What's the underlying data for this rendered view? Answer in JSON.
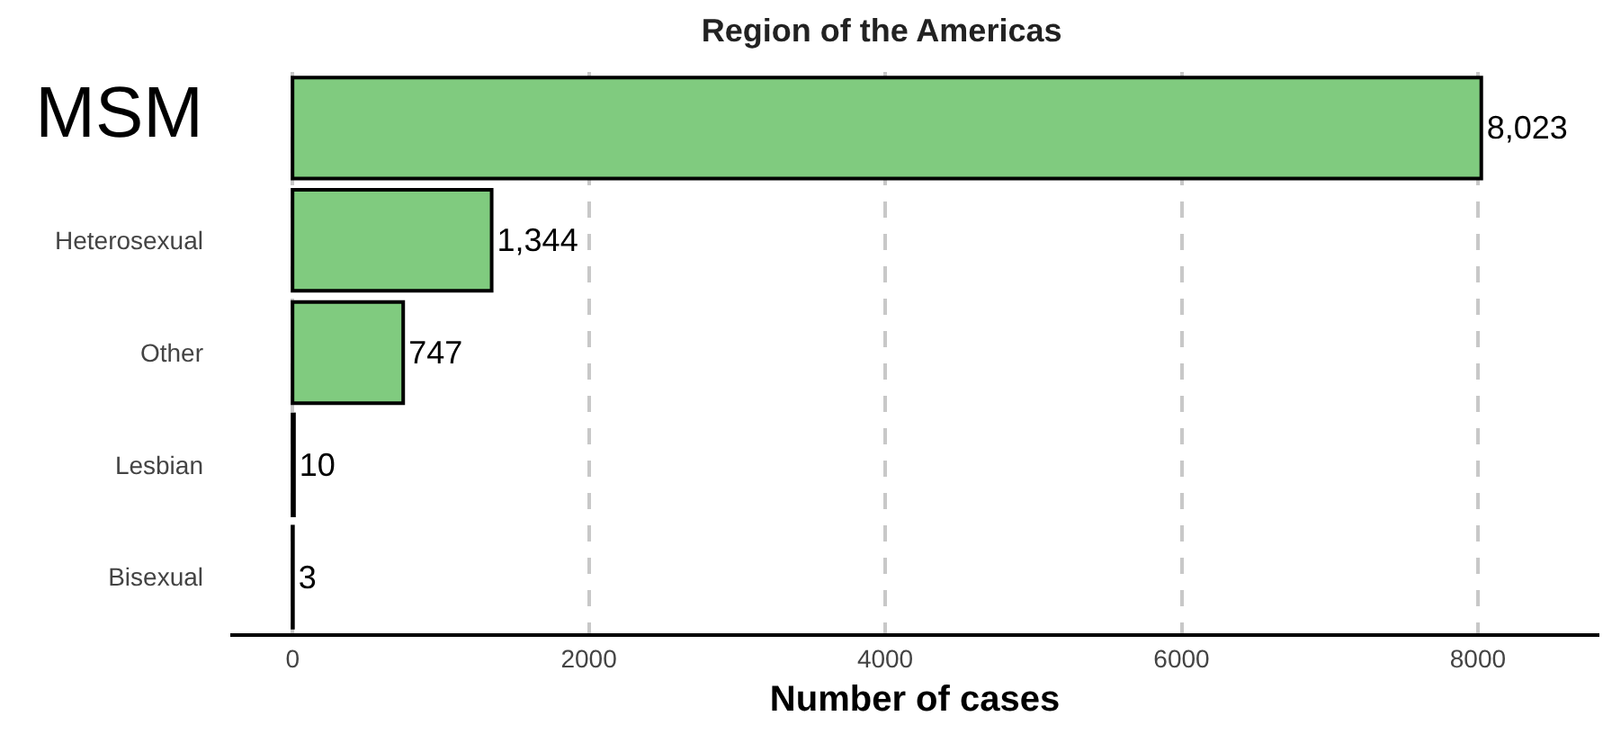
{
  "chart_data": {
    "type": "bar",
    "orientation": "horizontal",
    "title": "Region of the Americas",
    "xlabel": "Number of cases",
    "categories": [
      "MSM",
      "Heterosexual",
      "Other",
      "Lesbian",
      "Bisexual"
    ],
    "values": [
      8023,
      1344,
      747,
      10,
      3
    ],
    "color": "#80cb7f",
    "value_labels": [
      "8,023",
      "1,344",
      "747",
      "10",
      "3"
    ],
    "xlim": [
      -420,
      8820
    ],
    "xticks": [
      0,
      2000,
      4000,
      6000,
      8000
    ],
    "grid": "x",
    "legend": false
  }
}
